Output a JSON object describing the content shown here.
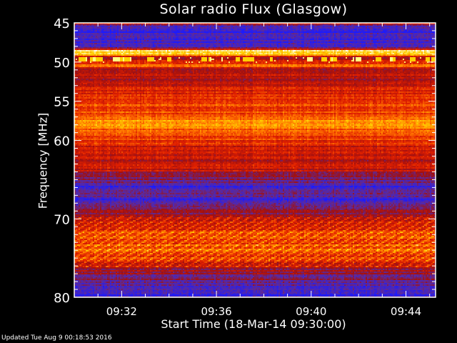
{
  "chart_data": {
    "type": "heatmap",
    "title": "Solar radio Flux (Glasgow)",
    "xlabel": "Start Time (18-Mar-14 09:30:00)",
    "ylabel": "Frequency [MHz]",
    "x_ticks": [
      "09:32",
      "09:36",
      "09:40",
      "09:44"
    ],
    "x_tick_minutes": [
      2,
      6,
      10,
      14
    ],
    "xlim_minutes": [
      0,
      15.25
    ],
    "y_ticks": [
      45,
      50,
      55,
      60,
      70,
      80
    ],
    "ylim": [
      45,
      80
    ],
    "y_inverted": true,
    "colormap": [
      "#1a1aff",
      "#5a2aa0",
      "#a01010",
      "#e02000",
      "#ff7000",
      "#ffd000",
      "#ffffff"
    ],
    "intensity_profile": [
      [
        45.0,
        0.45
      ],
      [
        45.4,
        0.05
      ],
      [
        47.0,
        0.08
      ],
      [
        48.2,
        0.2
      ],
      [
        48.5,
        0.95
      ],
      [
        48.9,
        0.85
      ],
      [
        49.3,
        0.35
      ],
      [
        50.0,
        0.45
      ],
      [
        50.3,
        0.7
      ],
      [
        50.8,
        0.4
      ],
      [
        52.5,
        0.35
      ],
      [
        53.5,
        0.5
      ],
      [
        55.0,
        0.55
      ],
      [
        56.5,
        0.62
      ],
      [
        57.5,
        0.72
      ],
      [
        58.5,
        0.68
      ],
      [
        59.5,
        0.55
      ],
      [
        61.0,
        0.45
      ],
      [
        62.5,
        0.38
      ],
      [
        63.5,
        0.45
      ],
      [
        64.5,
        0.25
      ],
      [
        66.0,
        0.12
      ],
      [
        68.0,
        0.15
      ],
      [
        69.5,
        0.35
      ],
      [
        71.0,
        0.5
      ],
      [
        73.0,
        0.55
      ],
      [
        74.0,
        0.65
      ],
      [
        75.5,
        0.45
      ],
      [
        77.0,
        0.25
      ],
      [
        79.0,
        0.1
      ],
      [
        79.7,
        0.05
      ],
      [
        80.0,
        0.45
      ]
    ],
    "bursts_mhz": [
      49.6,
      51.0
    ]
  },
  "footer": {
    "updated": "Updated Tue Aug  9 00:18:53 2016"
  }
}
